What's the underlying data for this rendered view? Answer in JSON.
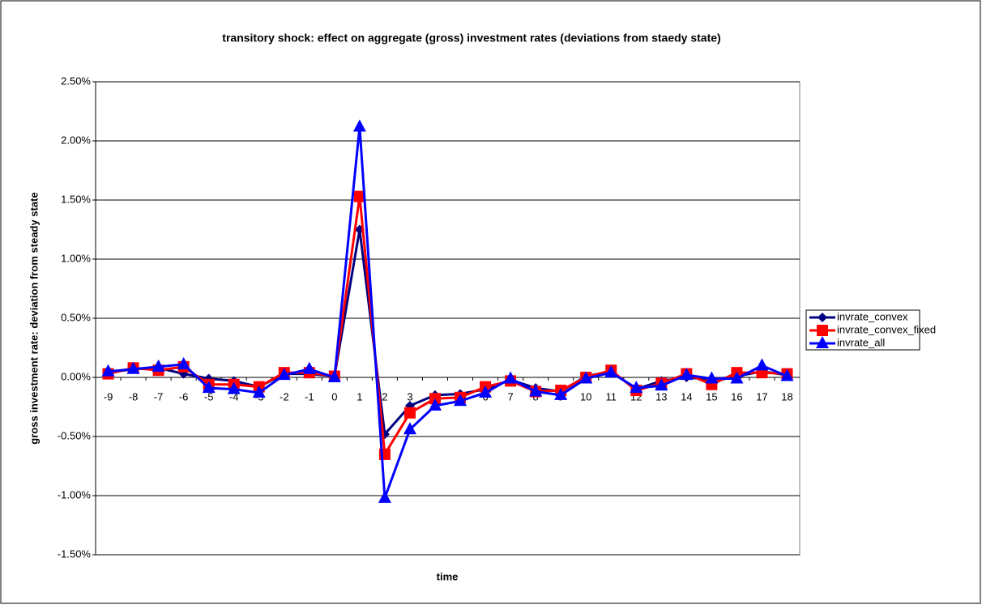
{
  "chart_data": {
    "type": "line",
    "title": "transitory shock: effect on aggregate (gross) investment rates (deviations from staedy state)",
    "x_label": "time",
    "y_label": "gross investment rate: deviation from steady state",
    "categories": [
      "-9",
      "-8",
      "-7",
      "-6",
      "-5",
      "-4",
      "-3",
      "-2",
      "-1",
      "0",
      "1",
      "2",
      "3",
      "4",
      "5",
      "6",
      "7",
      "8",
      "9",
      "10",
      "11",
      "12",
      "13",
      "14",
      "15",
      "16",
      "17",
      "18"
    ],
    "series": [
      {
        "name": "invrate_convex",
        "color": "#000080",
        "marker": "diamond",
        "values": [
          0.04,
          0.07,
          0.08,
          0.03,
          -0.01,
          -0.03,
          -0.08,
          0.03,
          0.03,
          0.01,
          1.25,
          -0.48,
          -0.24,
          -0.15,
          -0.14,
          -0.1,
          -0.02,
          -0.09,
          -0.12,
          0.01,
          0.05,
          -0.1,
          -0.03,
          0.0,
          -0.02,
          0.01,
          0.05,
          0.02
        ]
      },
      {
        "name": "invrate_convex_fixed",
        "color": "#ff0000",
        "marker": "square",
        "values": [
          0.03,
          0.08,
          0.06,
          0.09,
          -0.06,
          -0.06,
          -0.08,
          0.04,
          0.04,
          0.01,
          1.53,
          -0.65,
          -0.3,
          -0.18,
          -0.17,
          -0.08,
          -0.03,
          -0.12,
          -0.11,
          0.0,
          0.06,
          -0.11,
          -0.05,
          0.03,
          -0.06,
          0.04,
          0.04,
          0.03
        ]
      },
      {
        "name": "invrate_all",
        "color": "#0000ff",
        "marker": "triangle",
        "values": [
          0.05,
          0.07,
          0.09,
          0.11,
          -0.09,
          -0.1,
          -0.13,
          0.02,
          0.07,
          0.0,
          2.12,
          -1.02,
          -0.44,
          -0.24,
          -0.2,
          -0.13,
          -0.01,
          -0.12,
          -0.15,
          -0.01,
          0.04,
          -0.09,
          -0.07,
          0.02,
          -0.01,
          -0.01,
          0.1,
          0.01
        ]
      }
    ],
    "ylim": [
      -1.5,
      2.5
    ],
    "yticks": [
      {
        "value": -1.5,
        "label": "-1.50%"
      },
      {
        "value": -1.0,
        "label": "-1.00%"
      },
      {
        "value": -0.5,
        "label": "-0.50%"
      },
      {
        "value": 0,
        "label": "0.00%"
      },
      {
        "value": 0.5,
        "label": "0.50%"
      },
      {
        "value": 1.0,
        "label": "1.00%"
      },
      {
        "value": 1.5,
        "label": "1.50%"
      },
      {
        "value": 2.0,
        "label": "2.00%"
      },
      {
        "value": 2.5,
        "label": "2.50%"
      }
    ],
    "grid": true,
    "legend": "right"
  }
}
